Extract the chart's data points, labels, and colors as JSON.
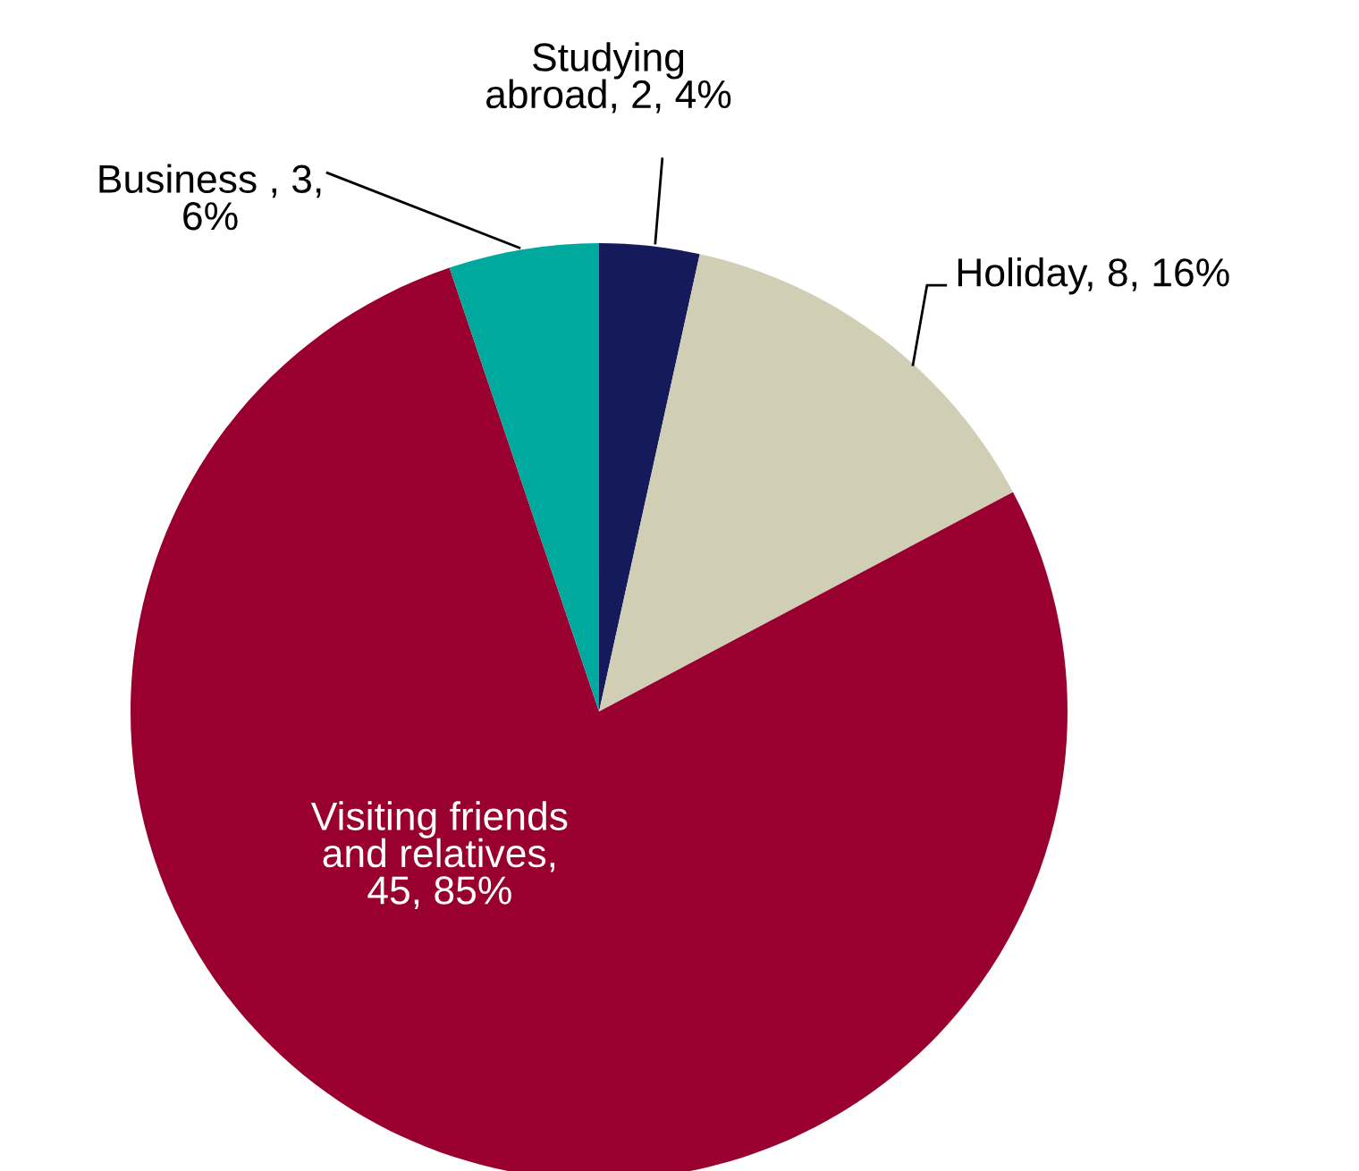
{
  "chart_data": {
    "type": "pie",
    "categories": [
      "Studying\nabroad",
      "Holiday",
      "Visiting friends\nand relatives",
      "Business "
    ],
    "values": [
      2,
      8,
      45,
      3
    ],
    "colors": [
      "#141a5a",
      "#d0cfb5",
      "#990030",
      "#00a99d"
    ],
    "value_labels": [
      ", 2, 4%",
      ", 8, 16%",
      ",\n45, 85%",
      ", 3,\n6%"
    ],
    "legend": false
  }
}
